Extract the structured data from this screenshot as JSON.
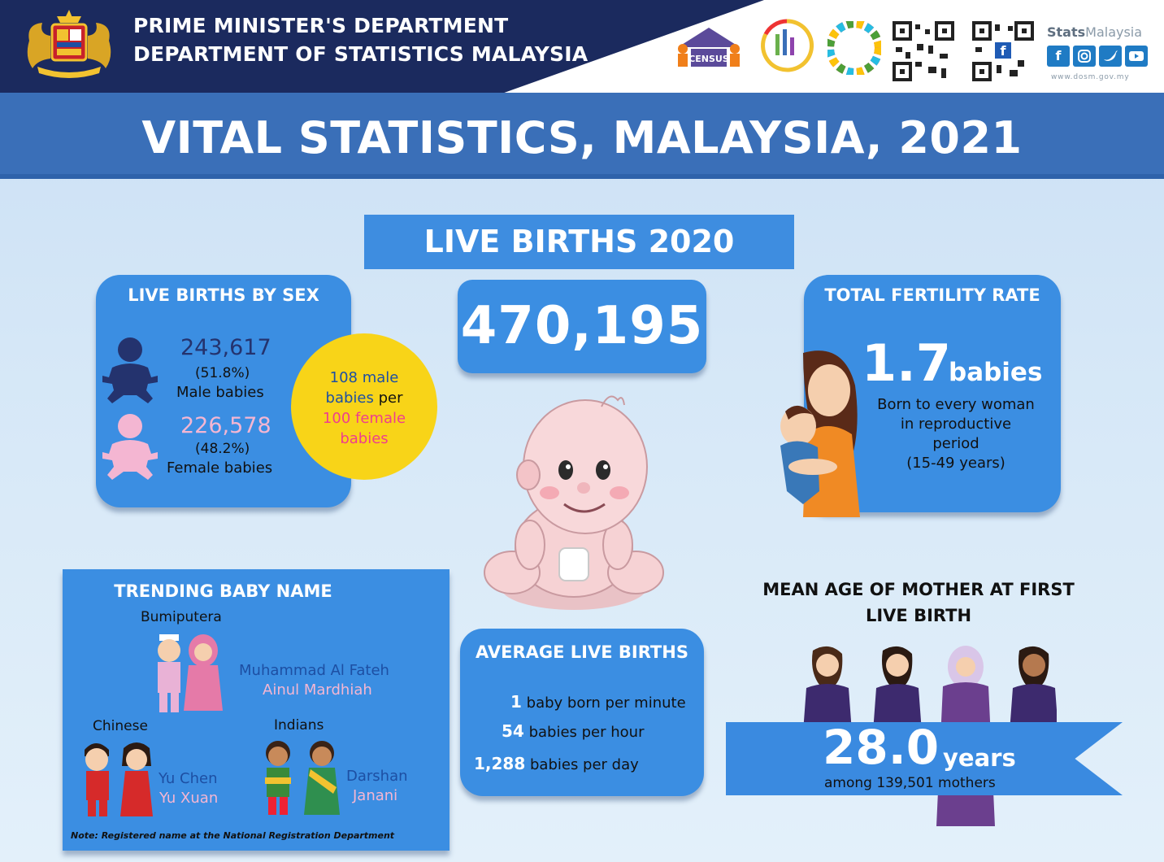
{
  "header": {
    "dept_line1": "PRIME MINISTER'S DEPARTMENT",
    "dept_line2": "DEPARTMENT OF STATISTICS MALAYSIA",
    "census_logo_text": "CENSUS",
    "stats_brand_bold": "Stats",
    "stats_brand_rest": "Malaysia",
    "url": "www.dosm.gov.my",
    "social_icons": [
      "facebook-icon",
      "instagram-icon",
      "twitter-icon",
      "youtube-icon"
    ],
    "colors": {
      "navy": "#1b2a5e",
      "title_band": "#3a6fb8"
    }
  },
  "title": "VITAL STATISTICS, MALAYSIA, 2021",
  "section": {
    "heading": "LIVE BIRTHS 2020"
  },
  "live_births_by_sex": {
    "title": "LIVE BIRTHS BY SEX",
    "male": {
      "count": "243,617",
      "percent": "(51.8%)",
      "label": "Male babies"
    },
    "female": {
      "count": "226,578",
      "percent": "(48.2%)",
      "label": "Female babies"
    },
    "ratio": {
      "line1": "108 male",
      "line2": "babies",
      "line2b": " per",
      "line3": "100 female",
      "line4": "babies"
    }
  },
  "total_live_births": "470,195",
  "total_fertility_rate": {
    "title": "TOTAL FERTILITY RATE",
    "value": "1.7",
    "unit": "babies",
    "desc_line1": "Born to every woman",
    "desc_line2": "in reproductive",
    "desc_line3": "period",
    "desc_line4": "(15-49 years)"
  },
  "trending_names": {
    "title": "TRENDING BABY NAME",
    "groups": [
      {
        "label": "Bumiputera",
        "boy": "Muhammad Al Fateh",
        "girl": "Ainul Mardhiah"
      },
      {
        "label": "Chinese",
        "boy": "Yu Chen",
        "girl": "Yu Xuan"
      },
      {
        "label": "Indians",
        "boy": "Darshan",
        "girl": "Janani"
      }
    ],
    "note": "Note: Registered name at the National Registration Department"
  },
  "average_live_births": {
    "title": "AVERAGE LIVE BIRTHS",
    "items": [
      {
        "value": "1",
        "text": " baby born per minute"
      },
      {
        "value": "54",
        "text": " babies per hour"
      },
      {
        "value": "1,288",
        "text": " babies per day"
      }
    ]
  },
  "mean_age_mother": {
    "title_line1": "MEAN AGE OF MOTHER AT FIRST",
    "title_line2": "LIVE BIRTH",
    "value": "28.0",
    "unit": "years",
    "sub": "among 139,501 mothers"
  }
}
